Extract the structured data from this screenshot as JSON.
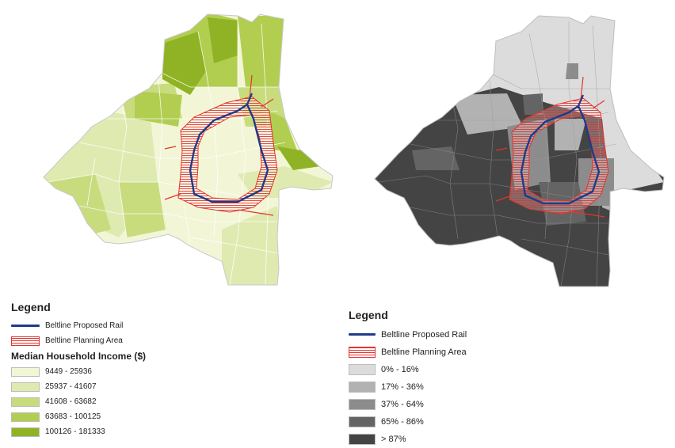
{
  "left_legend": {
    "title": "Legend",
    "rail_label": "Beltline Proposed Rail",
    "planning_label": "Beltline Planning Area",
    "subtitle": "Median Household Income ($)",
    "classes": [
      {
        "label": "9449 - 25936",
        "color": "#f2f6d6"
      },
      {
        "label": "25937 - 41607",
        "color": "#dfeab1"
      },
      {
        "label": "41608 - 63682",
        "color": "#c8dc7e"
      },
      {
        "label": "63683 - 100125",
        "color": "#b1ce50"
      },
      {
        "label": "100126 - 181333",
        "color": "#8fb324"
      }
    ]
  },
  "right_legend": {
    "title": "Legend",
    "rail_label": "Beltline Proposed Rail",
    "planning_label": "Beltline Planning Area",
    "classes": [
      {
        "label": "0% - 16%",
        "color": "#dcdcdc"
      },
      {
        "label": "17% - 36%",
        "color": "#b2b2b2"
      },
      {
        "label": "37% - 64%",
        "color": "#8c8c8c"
      },
      {
        "label": "65% - 86%",
        "color": "#646464"
      },
      {
        "label": "> 87%",
        "color": "#444444"
      }
    ]
  },
  "colors": {
    "rail": "#1f3a8a",
    "planning": "#e3342f",
    "tract_border": "#ffffff"
  }
}
